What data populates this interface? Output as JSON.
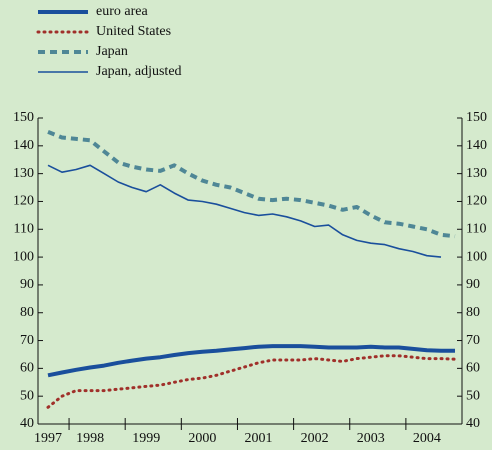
{
  "chart_data": {
    "type": "line",
    "categories": [
      "1997",
      null,
      null,
      "1998",
      null,
      null,
      null,
      "1999",
      null,
      null,
      null,
      "2000",
      null,
      null,
      null,
      "2001",
      null,
      null,
      null,
      "2002",
      null,
      null,
      null,
      "2003",
      null,
      null,
      null,
      "2004",
      null,
      null
    ],
    "series": [
      {
        "name": "euro area",
        "color": "#1a4f9c",
        "style": "thick",
        "values": [
          57.5,
          58.5,
          59.5,
          60.3,
          61,
          62,
          62.8,
          63.5,
          64,
          64.8,
          65.5,
          66,
          66.3,
          66.8,
          67.3,
          67.8,
          68,
          68,
          68,
          67.8,
          67.5,
          67.5,
          67.5,
          67.8,
          67.5,
          67.5,
          67,
          66.5,
          66.3,
          66.3
        ]
      },
      {
        "name": "United States",
        "color": "#a0302a",
        "style": "dotted",
        "values": [
          46,
          50,
          52,
          52,
          52,
          52.5,
          53,
          53.5,
          54,
          55,
          56,
          56.5,
          57.5,
          59,
          60.5,
          62,
          63,
          63,
          63,
          63.5,
          63,
          62.5,
          63.5,
          64,
          64.5,
          64.5,
          64,
          63.5,
          63.5,
          63.3
        ]
      },
      {
        "name": "Japan",
        "color": "#4f8796",
        "style": "dashed",
        "values": [
          145,
          143,
          142.5,
          142,
          138,
          134,
          132.5,
          131.5,
          131,
          133,
          130,
          127.5,
          126,
          125,
          123,
          121,
          120.5,
          121,
          120.5,
          119.5,
          118.5,
          117,
          118,
          115,
          112.5,
          112,
          111,
          110,
          108,
          107.5
        ]
      },
      {
        "name": "Japan, adjusted",
        "color": "#1a4f9c",
        "style": "thin",
        "values": [
          133,
          130.5,
          131.5,
          133,
          130,
          127,
          125,
          123.5,
          126,
          123,
          120.5,
          120,
          119,
          117.5,
          116,
          115,
          115.5,
          114.5,
          113,
          111,
          111.5,
          108,
          106,
          105,
          104.5,
          103,
          102,
          100.5,
          100,
          null
        ]
      }
    ],
    "ylim": [
      40,
      150
    ],
    "yticks": [
      40,
      50,
      60,
      70,
      80,
      90,
      100,
      110,
      120,
      130,
      140,
      150
    ],
    "y2lim": [
      40,
      150
    ],
    "y2ticks": [
      40,
      50,
      60,
      70,
      80,
      90,
      100,
      110,
      120,
      130,
      140,
      150
    ]
  }
}
